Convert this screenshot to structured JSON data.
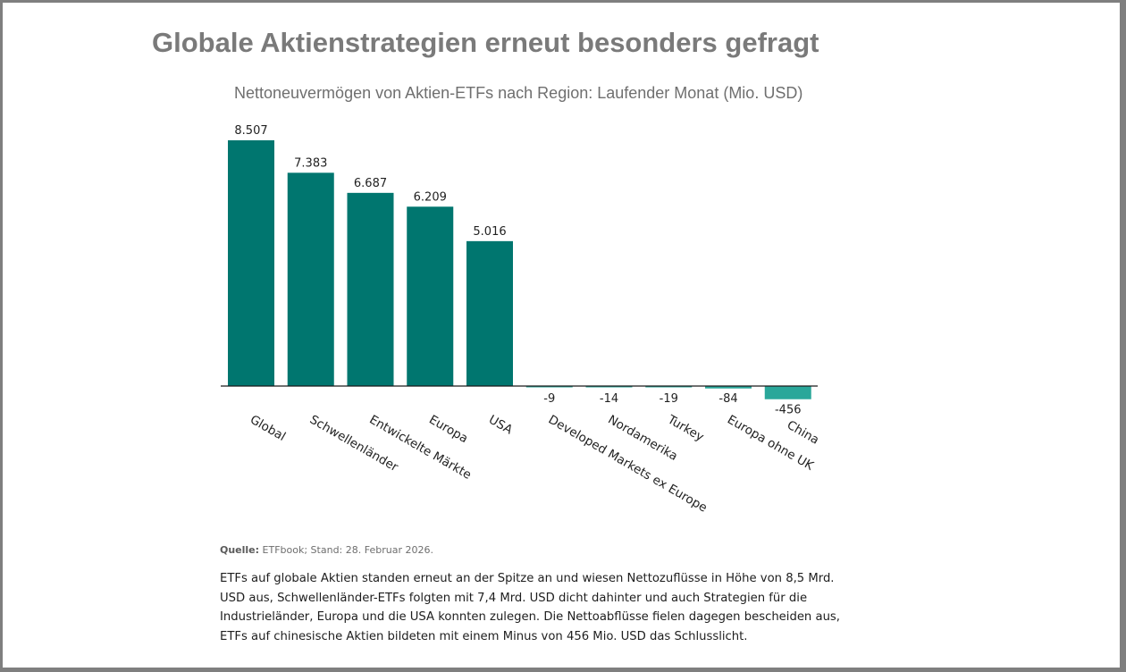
{
  "page": {
    "title": "Globale Aktienstrategien erneut besonders gefragt",
    "source_label": "Quelle:",
    "source_text": "ETFbook; Stand: 28. Februar 2026.",
    "paragraph": "ETFs auf globale Aktien standen erneut an der Spitze an und wiesen Nettozuflüsse in Höhe von 8,5 Mrd. USD aus, Schwellenländer-ETFs folgten mit 7,4 Mrd. USD dicht dahinter und auch Strategien für die Industrieländer, Europa und die USA konnten zulegen. Die Nettoabflüsse fielen dagegen bescheiden aus, ETFs auf chinesische Aktien bildeten mit einem Minus von 456 Mio. USD das Schlusslicht."
  },
  "colors": {
    "positive_bar": "#00766f",
    "negative_bar": "#2aa79a",
    "axis": "#1a1a1a",
    "title": "#7a7a7a"
  },
  "chart_data": {
    "type": "bar",
    "title": "Nettoneuvermögen von Aktien-ETFs nach Region: Laufender Monat (Mio. USD)",
    "xlabel": "",
    "ylabel": "",
    "categories": [
      "Global",
      "Schwellenländer",
      "Entwickelte Märkte",
      "Europa",
      "USA",
      "Developed Markets ex Europe",
      "Nordamerika",
      "Turkey",
      "Europa ohne UK",
      "China"
    ],
    "values": [
      8507,
      7383,
      6687,
      6209,
      5016,
      -9,
      -14,
      -19,
      -84,
      -456
    ],
    "value_labels": [
      "8.507",
      "7.383",
      "6.687",
      "6.209",
      "5.016",
      "-9",
      "-14",
      "-19",
      "-84",
      "-456"
    ],
    "ylim": [
      -456,
      8507
    ],
    "grid": false,
    "legend": "none",
    "label_rotation": "30deg clockwise"
  }
}
